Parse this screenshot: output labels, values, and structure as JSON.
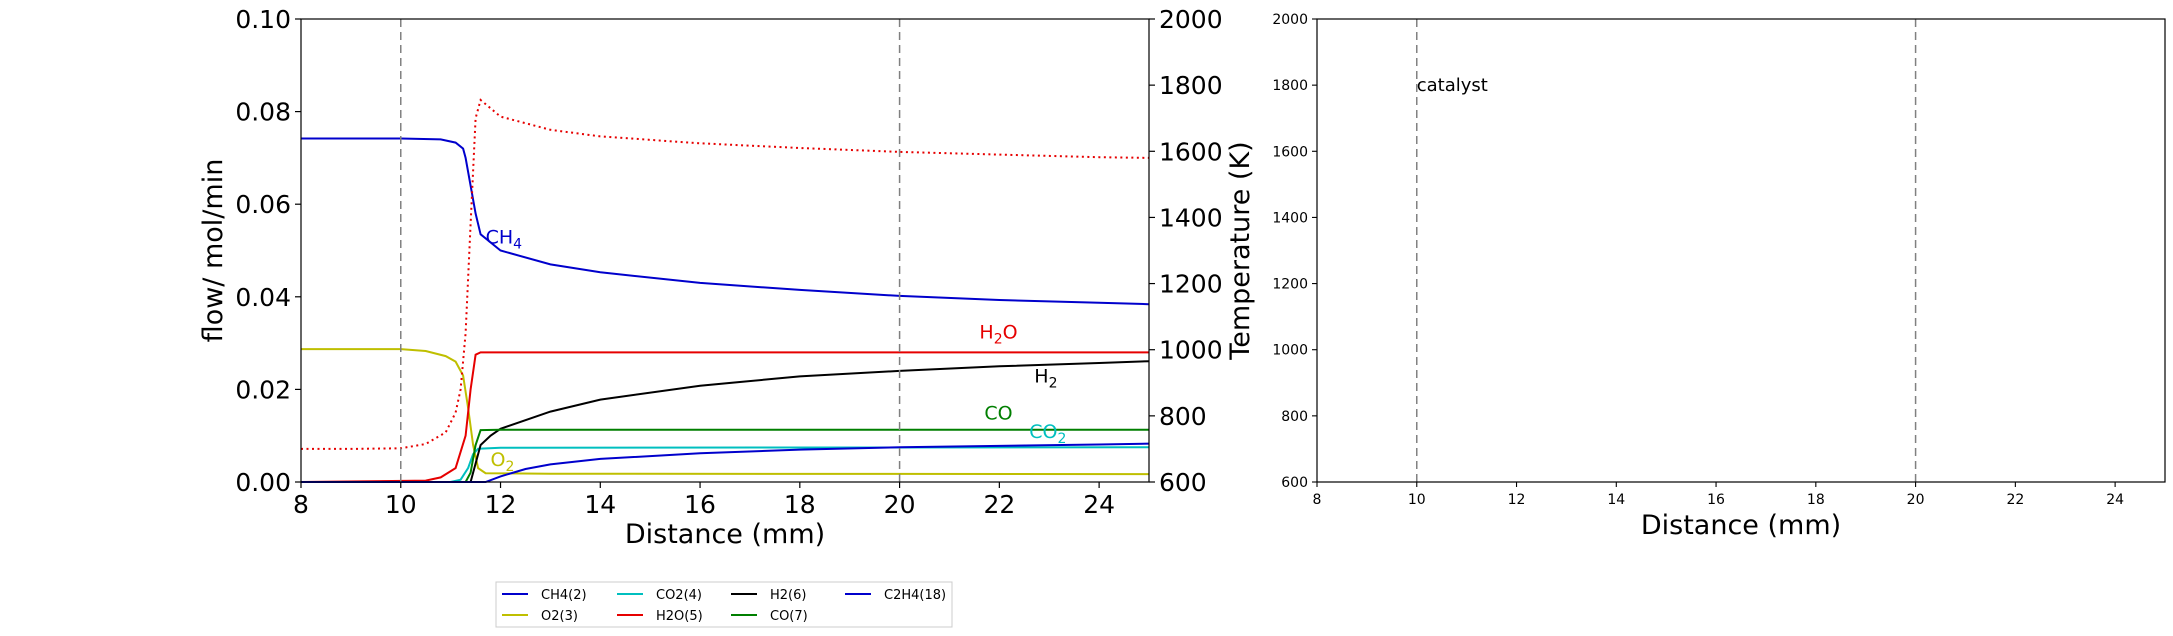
{
  "chart_data": [
    {
      "type": "line",
      "xlabel": "Distance (mm)",
      "ylabel": "flow/ mol/min",
      "y2label": "Temperature (K)",
      "xlim": [
        8,
        25
      ],
      "ylim": [
        0,
        0.1
      ],
      "y2lim": [
        600,
        2000
      ],
      "xticks": [
        "8",
        "10",
        "12",
        "14",
        "16",
        "18",
        "20",
        "22",
        "24"
      ],
      "yticks": [
        "0.00",
        "0.02",
        "0.04",
        "0.06",
        "0.08",
        "0.10"
      ],
      "y2ticks": [
        "600",
        "800",
        "1000",
        "1200",
        "1400",
        "1600",
        "1800",
        "2000"
      ],
      "vlines": [
        10,
        20
      ],
      "grid": false,
      "series": [
        {
          "name": "CH4(2)",
          "color": "#0000cc",
          "style": "solid",
          "axis": "left",
          "points": [
            [
              8,
              0.0742
            ],
            [
              10,
              0.0742
            ],
            [
              10.8,
              0.074
            ],
            [
              11.1,
              0.0733
            ],
            [
              11.25,
              0.072
            ],
            [
              11.3,
              0.07
            ],
            [
              11.4,
              0.064
            ],
            [
              11.5,
              0.058
            ],
            [
              11.6,
              0.0535
            ],
            [
              12,
              0.05
            ],
            [
              13,
              0.047
            ],
            [
              14,
              0.0453
            ],
            [
              16,
              0.043
            ],
            [
              18,
              0.0415
            ],
            [
              20,
              0.0402
            ],
            [
              22,
              0.0393
            ],
            [
              24,
              0.0387
            ],
            [
              25,
              0.0384
            ]
          ]
        },
        {
          "name": "O2(3)",
          "color": "#bfbf00",
          "style": "solid",
          "axis": "left",
          "points": [
            [
              8,
              0.0287
            ],
            [
              10,
              0.0287
            ],
            [
              10.5,
              0.0283
            ],
            [
              10.9,
              0.0272
            ],
            [
              11.1,
              0.026
            ],
            [
              11.25,
              0.023
            ],
            [
              11.35,
              0.016
            ],
            [
              11.45,
              0.008
            ],
            [
              11.55,
              0.003
            ],
            [
              11.7,
              0.0019
            ],
            [
              13,
              0.0018
            ],
            [
              25,
              0.0017
            ]
          ]
        },
        {
          "name": "CO2(4)",
          "color": "#00bfbf",
          "style": "solid",
          "axis": "left",
          "points": [
            [
              8,
              0
            ],
            [
              11,
              0
            ],
            [
              11.2,
              0.0005
            ],
            [
              11.35,
              0.003
            ],
            [
              11.45,
              0.006
            ],
            [
              11.55,
              0.0072
            ],
            [
              12,
              0.0074
            ],
            [
              25,
              0.0075
            ]
          ]
        },
        {
          "name": "H2O(5)",
          "color": "#e60000",
          "style": "solid",
          "axis": "left",
          "points": [
            [
              8,
              0
            ],
            [
              10.5,
              0.0003
            ],
            [
              10.8,
              0.001
            ],
            [
              11.1,
              0.003
            ],
            [
              11.3,
              0.01
            ],
            [
              11.4,
              0.02
            ],
            [
              11.5,
              0.0275
            ],
            [
              11.6,
              0.028
            ],
            [
              12,
              0.028
            ],
            [
              25,
              0.028
            ]
          ]
        },
        {
          "name": "H2(6)",
          "color": "#000000",
          "style": "solid",
          "axis": "left",
          "points": [
            [
              8,
              0
            ],
            [
              11.4,
              0
            ],
            [
              11.5,
              0.004
            ],
            [
              11.6,
              0.008
            ],
            [
              11.8,
              0.01
            ],
            [
              12,
              0.0115
            ],
            [
              13,
              0.0152
            ],
            [
              14,
              0.0178
            ],
            [
              16,
              0.0208
            ],
            [
              18,
              0.0228
            ],
            [
              20,
              0.024
            ],
            [
              22,
              0.025
            ],
            [
              24,
              0.0257
            ],
            [
              25,
              0.0261
            ]
          ]
        },
        {
          "name": "CO(7)",
          "color": "#007f00",
          "style": "solid",
          "axis": "left",
          "points": [
            [
              8,
              0
            ],
            [
              11.3,
              0
            ],
            [
              11.4,
              0.002
            ],
            [
              11.5,
              0.008
            ],
            [
              11.6,
              0.0112
            ],
            [
              12,
              0.0113
            ],
            [
              25,
              0.0113
            ]
          ]
        },
        {
          "name": "C2H4(18)",
          "color": "#0000cc",
          "style": "solid",
          "axis": "left",
          "points": [
            [
              8,
              0
            ],
            [
              11.7,
              0
            ],
            [
              12,
              0.0012
            ],
            [
              12.5,
              0.0028
            ],
            [
              13,
              0.0038
            ],
            [
              14,
              0.005
            ],
            [
              16,
              0.0062
            ],
            [
              18,
              0.007
            ],
            [
              20,
              0.0075
            ],
            [
              22,
              0.0078
            ],
            [
              24,
              0.0081
            ],
            [
              25,
              0.0083
            ]
          ]
        },
        {
          "name": "",
          "color": "#e60000",
          "style": "dotted",
          "axis": "right",
          "points": [
            [
              8,
              700
            ],
            [
              9,
              700
            ],
            [
              10,
              702
            ],
            [
              10.5,
              715
            ],
            [
              10.9,
              750
            ],
            [
              11.1,
              810
            ],
            [
              11.2,
              880
            ],
            [
              11.3,
              1050
            ],
            [
              11.4,
              1380
            ],
            [
              11.5,
              1700
            ],
            [
              11.6,
              1755
            ],
            [
              11.8,
              1730
            ],
            [
              12,
              1705
            ],
            [
              13,
              1665
            ],
            [
              14,
              1645
            ],
            [
              16,
              1624
            ],
            [
              18,
              1610
            ],
            [
              20,
              1598
            ],
            [
              22,
              1590
            ],
            [
              24,
              1582
            ],
            [
              25,
              1580
            ]
          ]
        }
      ],
      "annotations": [
        {
          "base": "CH",
          "sub": "4",
          "x": 11.7,
          "y": 0.0515,
          "color": "#0000cc"
        },
        {
          "base": "H",
          "sub": "2",
          "post": "O",
          "x": 21.6,
          "y": 0.031,
          "color": "#e60000"
        },
        {
          "base": "H",
          "sub": "2",
          "x": 22.7,
          "y": 0.0215,
          "color": "#000000"
        },
        {
          "base": "CO",
          "x": 21.7,
          "y": 0.0135,
          "color": "#007f00"
        },
        {
          "base": "CO",
          "sub": "2",
          "x": 22.6,
          "y": 0.0095,
          "color": "#00bfbf"
        },
        {
          "base": "O",
          "sub": "2",
          "x": 11.8,
          "y": 0.0035,
          "color": "#bfbf00"
        }
      ],
      "legend": {
        "placement": "below",
        "entries": [
          {
            "label": "CH4(2)",
            "color": "#0000cc"
          },
          {
            "label": "O2(3)",
            "color": "#bfbf00"
          },
          {
            "label": "CO2(4)",
            "color": "#00bfbf"
          },
          {
            "label": "H2O(5)",
            "color": "#e60000"
          },
          {
            "label": "H2(6)",
            "color": "#000000"
          },
          {
            "label": "CO(7)",
            "color": "#007f00"
          },
          {
            "label": "C2H4(18)",
            "color": "#0000cc"
          }
        ]
      }
    },
    {
      "type": "line",
      "xlabel": "Distance (mm)",
      "ylabel": "",
      "xlim": [
        8,
        25
      ],
      "ylim": [
        600,
        2000
      ],
      "xticks": [
        "8",
        "10",
        "12",
        "14",
        "16",
        "18",
        "20",
        "22",
        "24"
      ],
      "yticks": [
        "600",
        "800",
        "1000",
        "1200",
        "1400",
        "1600",
        "1800",
        "2000"
      ],
      "vlines": [
        10,
        20
      ],
      "grid": false,
      "annotations": [
        {
          "text": "catalyst",
          "x": 10,
          "y": 1800
        }
      ],
      "series": []
    }
  ]
}
